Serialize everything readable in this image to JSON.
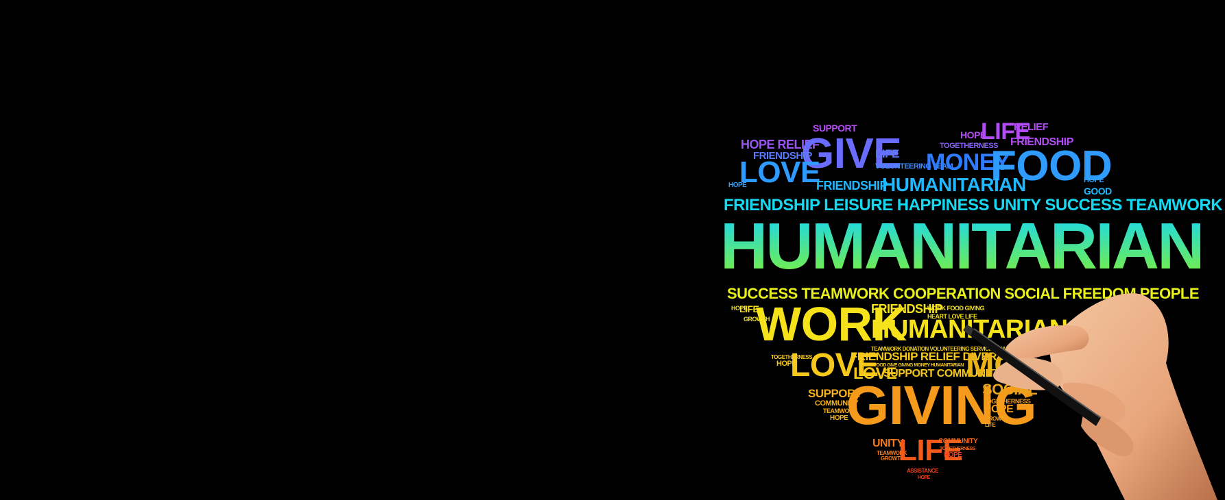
{
  "colors": {
    "background": "#000000",
    "top": "#b44cf5",
    "upper": "#2f7bff",
    "cyan": "#16d8f0",
    "green": "#7ef03a",
    "yellow": "#f5e21a",
    "orange": "#f59a1a",
    "red": "#f2401c"
  },
  "words": {
    "support_top": "SUPPORT",
    "hope_top": "HOPE",
    "life_top": "LIFE",
    "relief_top": "RELIEF",
    "hope_relief": "HOPE RELIEF",
    "give": "GIVE",
    "friendship_1": "FRIENDSHIP",
    "friendship_top_right": "FRIENDSHIP",
    "togetherness": "TOGETHERNESS",
    "life_small": "LIFE",
    "volunteering_team": "VOLUNTEERING TEAM",
    "money": "MONEY",
    "food": "FOOD",
    "love_1": "LOVE",
    "friendship_2": "FRIENDSHIP",
    "humanitarian_small": "HUMANITARIAN",
    "hope_left": "HOPE",
    "good": "GOOD",
    "hope_right": "HOPE",
    "row_line": "FRIENDSHIP LEISURE HAPPINESS UNITY SUCCESS TEAMWORK",
    "humanitarian_big": "HUMANITARIAN",
    "row2_line": "SUCCESS TEAMWORK COOPERATION SOCIAL FREEDOM PEOPLE",
    "work": "WORK",
    "friendship_3": "FRIENDSHIP",
    "humanitarian_mid": "HUMANITARIAN",
    "tiny_line_1": "WORK FOOD GIVING",
    "tiny_line_2": "HEART LOVE LIFE",
    "tiny_line_3": "TEAMWORK DONATION VOLUNTEERING SERVICE TEAM FAMILY",
    "hope_small_left": "HOPE",
    "life_small_left": "LIFE",
    "growth": "GROWTH",
    "friendship_relief_diversity": "FRIENDSHIP RELIEF DIVERSITY",
    "love_2": "LOVE",
    "love_3": "LOVE",
    "support_community": "SUPPORT COMMUNITY",
    "tiny_line_4": "WORK FOOD GIVE GIVING MONEY HUMANITARIAN",
    "money_cut": "MO",
    "togetherness_2": "TOGETHERNESS",
    "hope_3": "HOPE",
    "support_2": "SUPPORT",
    "community_2": "COMMUNITY",
    "teamwork_2": "TEAMWORK",
    "hope_4": "HOPE",
    "giving": "GIVING",
    "social": "SOCIAL",
    "togetherness_3": "TOGETHERNESS",
    "hope_5": "HOPE",
    "growth_2": "GROWTH",
    "life_3": "LIFE",
    "unity": "UNITY",
    "teamwork_3": "TEAMWORK",
    "growth_3": "GROWTH",
    "life_big_bottom": "LIFE",
    "community_3": "COMMUNITY",
    "togetherness_4": "TOGETHERNESS",
    "hope_6": "HOPE",
    "assistance": "ASSISTANCE",
    "hope_7": "HOPE"
  }
}
